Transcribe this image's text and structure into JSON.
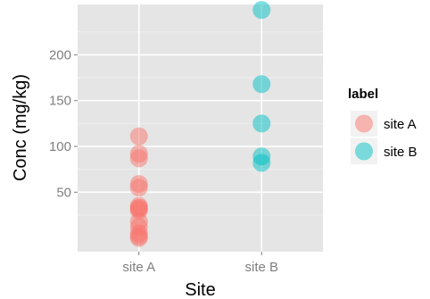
{
  "chart_data": {
    "type": "scatter",
    "title": "",
    "xlabel": "Site",
    "ylabel": "Conc (mg/kg)",
    "categories": [
      "site A",
      "site B"
    ],
    "ylim": [
      -15,
      255
    ],
    "yticks": [
      50,
      100,
      150,
      200
    ],
    "grid": true,
    "legend": {
      "title": "label",
      "placement": "right",
      "entries": [
        "site A",
        "site B"
      ]
    },
    "colors": {
      "panel": "#e5e5e5",
      "grid_major": "#ffffff",
      "grid_minor": "#f2f2f2",
      "site A": "#f8766d",
      "site B": "#00bfc4"
    },
    "point_alpha": 0.5,
    "series": [
      {
        "name": "site A",
        "x": [
          "site A",
          "site A",
          "site A",
          "site A",
          "site A",
          "site A",
          "site A",
          "site A",
          "site A",
          "site A",
          "site A",
          "site A",
          "site A",
          "site A"
        ],
        "y": [
          111,
          92,
          87,
          59,
          55,
          35,
          33,
          32,
          30,
          18,
          12,
          5,
          2,
          0
        ]
      },
      {
        "name": "site B",
        "x": [
          "site B",
          "site B",
          "site B",
          "site B",
          "site B"
        ],
        "y": [
          249,
          168,
          125,
          89,
          82
        ]
      }
    ]
  }
}
